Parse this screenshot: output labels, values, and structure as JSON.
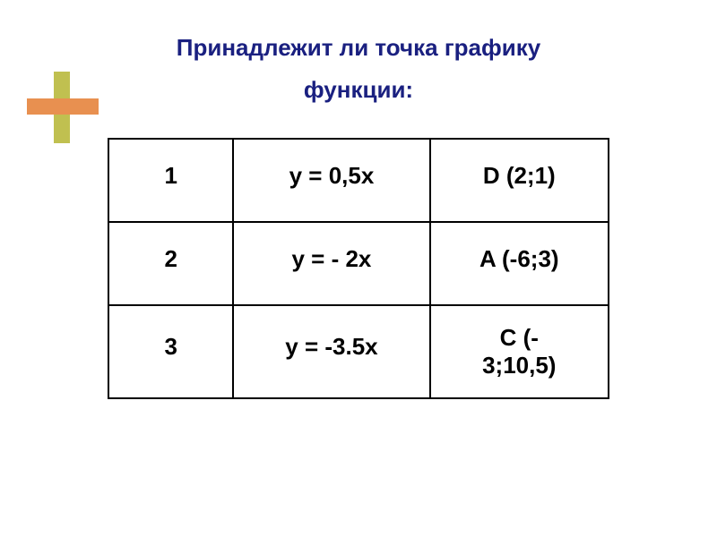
{
  "title": {
    "line1": "Принадлежит ли точка графику",
    "line2": "функции:"
  },
  "decoration": {
    "vertical_color": "#c0c050",
    "horizontal_color": "#e89050"
  },
  "table": {
    "border_color": "#000000",
    "text_color": "#000000",
    "font_size": 26,
    "columns": [
      "index",
      "function",
      "point"
    ],
    "rows": [
      {
        "index": "1",
        "function": "y = 0,5x",
        "point": "D   (2;1)"
      },
      {
        "index": "2",
        "function": "y = - 2x",
        "point": "A (-6;3)"
      },
      {
        "index": "3",
        "function": "y = -3.5x",
        "point_line1": "C (-",
        "point_line2": "3;10,5)"
      }
    ]
  },
  "styling": {
    "title_color": "#1a2080",
    "background_color": "#ffffff",
    "title_fontsize": 26
  }
}
